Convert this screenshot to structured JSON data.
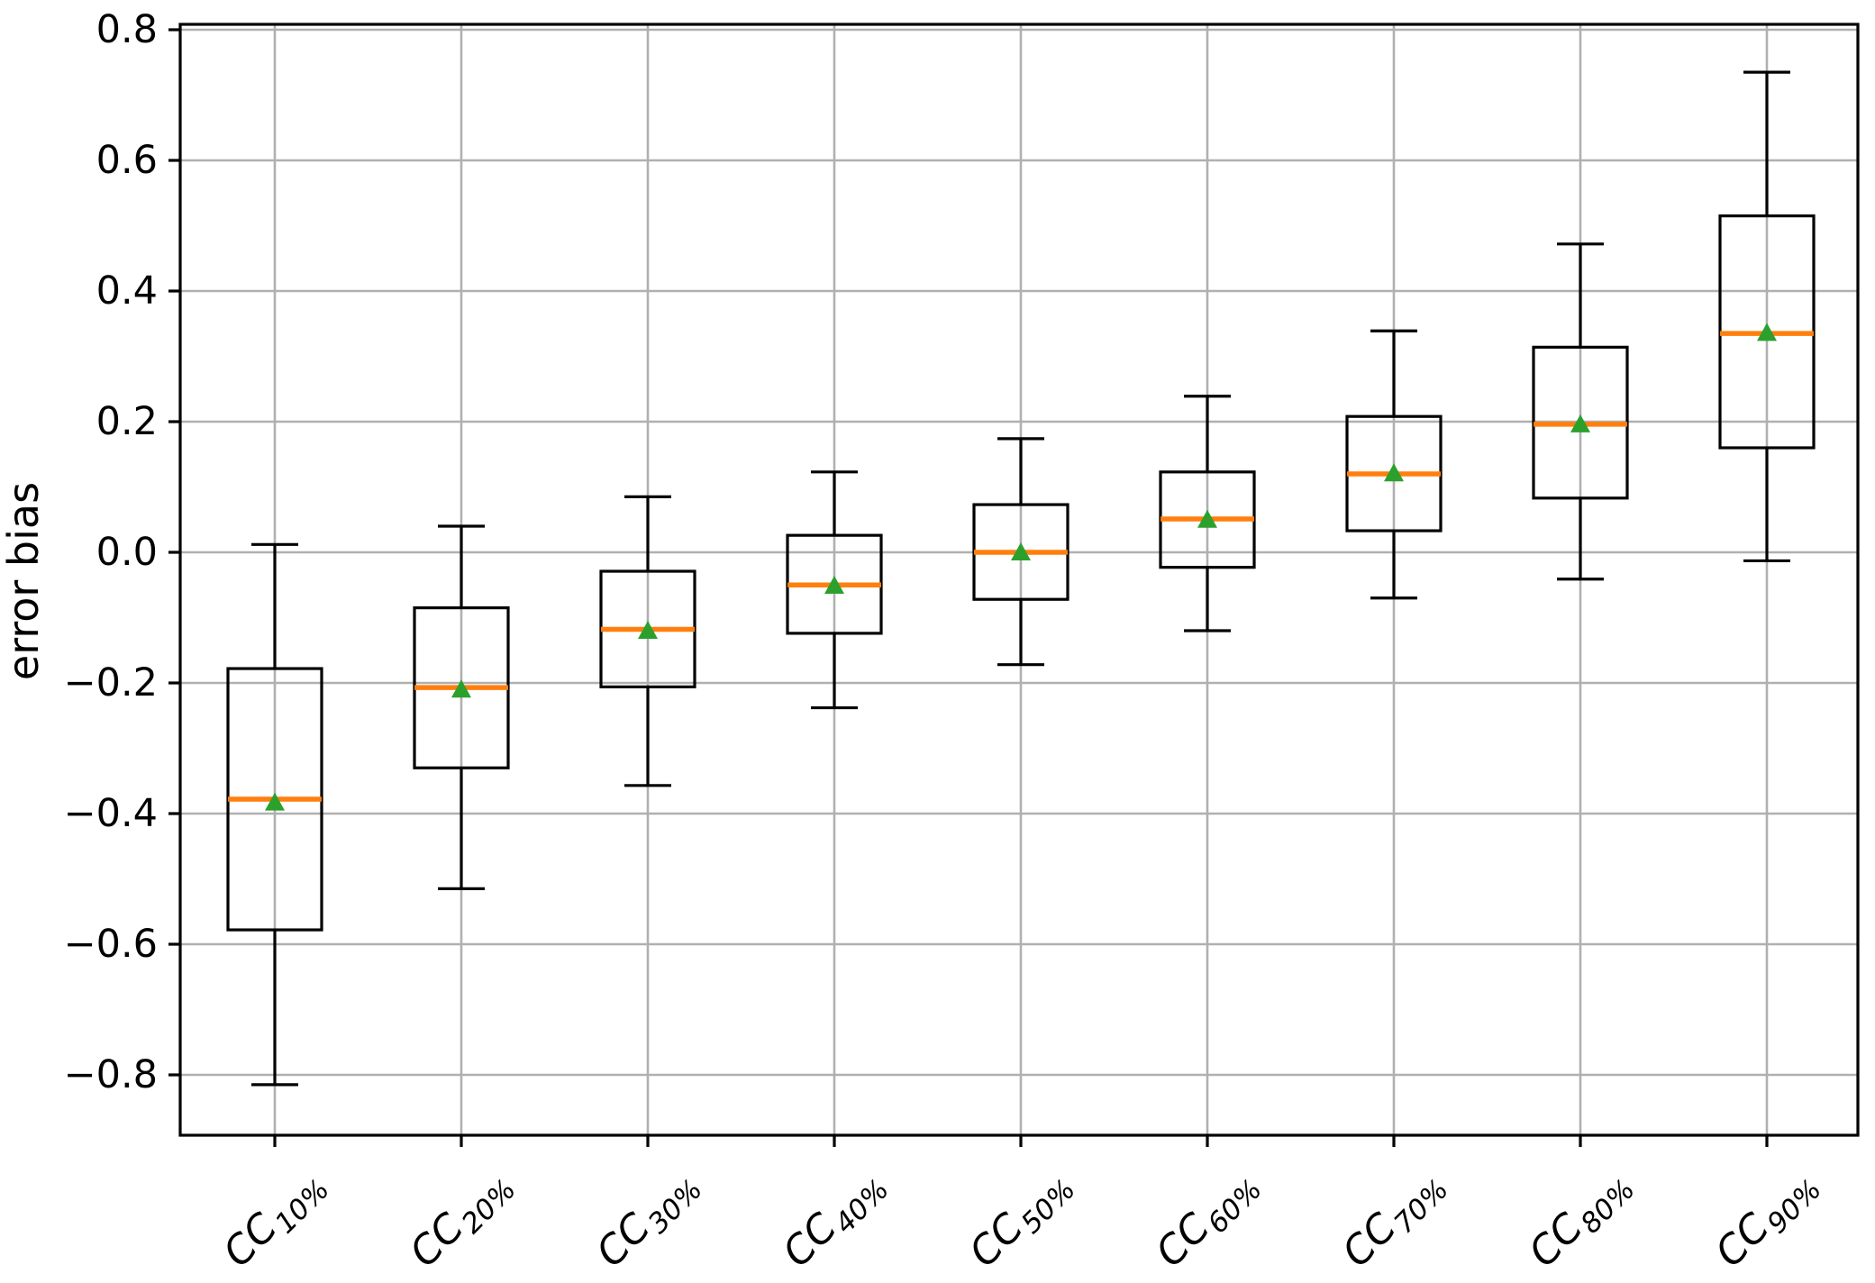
{
  "figure": {
    "title": "",
    "ylabel": "error bias"
  },
  "chart_data": {
    "type": "boxplot",
    "title": "",
    "xlabel": "",
    "ylabel": "error bias",
    "grid": true,
    "legend": "none",
    "x_tick_rotation_deg": 45,
    "ylim": [
      -0.89,
      0.8
    ],
    "y_ticks": [
      0.8,
      0.6,
      0.4,
      0.2,
      0.0,
      -0.2,
      -0.4,
      -0.6,
      -0.8
    ],
    "categories": [
      {
        "base": "CC",
        "sub": "10%"
      },
      {
        "base": "CC",
        "sub": "20%"
      },
      {
        "base": "CC",
        "sub": "30%"
      },
      {
        "base": "CC",
        "sub": "40%"
      },
      {
        "base": "CC",
        "sub": "50%"
      },
      {
        "base": "CC",
        "sub": "60%"
      },
      {
        "base": "CC",
        "sub": "70%"
      },
      {
        "base": "CC",
        "sub": "80%"
      },
      {
        "base": "CC",
        "sub": "90%"
      }
    ],
    "boxes": [
      {
        "category": "CC10%",
        "whisker_low": -0.815,
        "q1": -0.578,
        "median": -0.378,
        "mean": -0.383,
        "q3": -0.178,
        "whisker_high": 0.012
      },
      {
        "category": "CC20%",
        "whisker_low": -0.515,
        "q1": -0.33,
        "median": -0.207,
        "mean": -0.21,
        "q3": -0.085,
        "whisker_high": 0.04
      },
      {
        "category": "CC30%",
        "whisker_low": -0.357,
        "q1": -0.206,
        "median": -0.118,
        "mean": -0.12,
        "q3": -0.029,
        "whisker_high": 0.085
      },
      {
        "category": "CC40%",
        "whisker_low": -0.238,
        "q1": -0.124,
        "median": -0.05,
        "mean": -0.051,
        "q3": 0.026,
        "whisker_high": 0.123
      },
      {
        "category": "CC50%",
        "whisker_low": -0.172,
        "q1": -0.072,
        "median": 0.0,
        "mean": 0.0,
        "q3": 0.073,
        "whisker_high": 0.174
      },
      {
        "category": "CC60%",
        "whisker_low": -0.12,
        "q1": -0.023,
        "median": 0.051,
        "mean": 0.05,
        "q3": 0.123,
        "whisker_high": 0.239
      },
      {
        "category": "CC70%",
        "whisker_low": -0.07,
        "q1": 0.033,
        "median": 0.12,
        "mean": 0.121,
        "q3": 0.208,
        "whisker_high": 0.339
      },
      {
        "category": "CC80%",
        "whisker_low": -0.041,
        "q1": 0.083,
        "median": 0.196,
        "mean": 0.196,
        "q3": 0.314,
        "whisker_high": 0.472
      },
      {
        "category": "CC90%",
        "whisker_low": -0.013,
        "q1": 0.16,
        "median": 0.335,
        "mean": 0.336,
        "q3": 0.515,
        "whisker_high": 0.735
      }
    ],
    "colors": {
      "box_edge": "#000000",
      "median": "#ff7f0e",
      "mean_marker": "#2ca02c",
      "grid": "#b0b0b0",
      "spine": "#000000",
      "background": "#ffffff"
    }
  }
}
